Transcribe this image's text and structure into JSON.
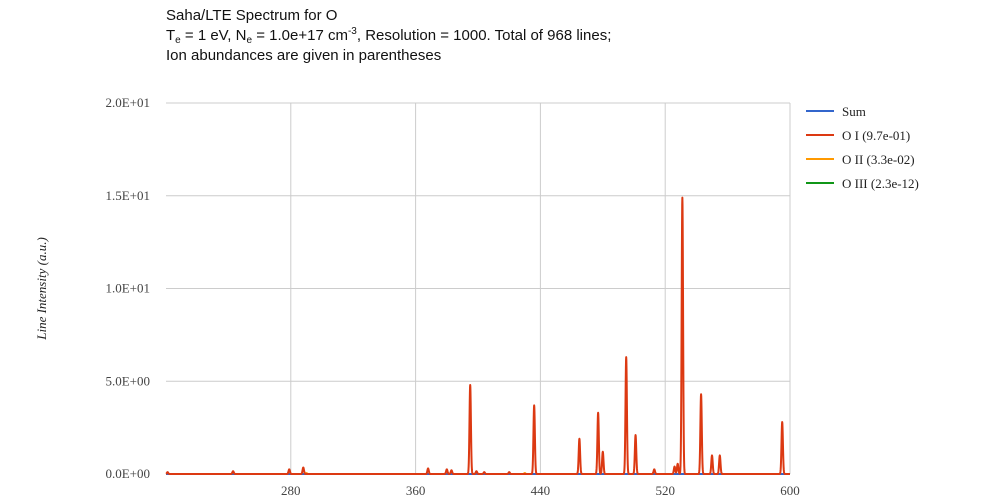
{
  "title": {
    "line1": "Saha/LTE Spectrum for O",
    "te_symbol": "T",
    "te_sub": "e",
    "te_value": " = 1 eV, ",
    "ne_symbol": "N",
    "ne_sub": "e",
    "ne_value": " = 1.0e+17 cm",
    "ne_exp": "-3",
    "rest": ", Resolution = 1000. Total of 968 lines;",
    "line3": "Ion abundances are given in parentheses"
  },
  "chart_data": {
    "type": "line",
    "title": "Saha/LTE Spectrum for O",
    "xlabel": "",
    "ylabel": "Line Intensity (a.u.)",
    "xlim": [
      200,
      600
    ],
    "ylim": [
      0,
      20
    ],
    "x_ticks": [
      280,
      360,
      440,
      520,
      600
    ],
    "x_tick_labels": [
      "280",
      "360",
      "440",
      "520",
      "600"
    ],
    "y_ticks": [
      0,
      5,
      10,
      15,
      20
    ],
    "y_tick_labels": [
      "0.0E+00",
      "5.0E+00",
      "1.0E+01",
      "1.5E+01",
      "2.0E+01"
    ],
    "grid": true,
    "legend_position": "right",
    "colors": {
      "Sum": "#3366cc",
      "O I (9.7e-01)": "#dc3912",
      "O II (3.3e-02)": "#ff9900",
      "O III (2.3e-12)": "#109618"
    },
    "series": [
      {
        "name": "Sum",
        "baseline": 0,
        "peaks": []
      },
      {
        "name": "O I (9.7e-01)",
        "baseline": 0,
        "peaks": [
          {
            "x": 201,
            "y": 0.1
          },
          {
            "x": 243,
            "y": 0.15
          },
          {
            "x": 279,
            "y": 0.25
          },
          {
            "x": 288,
            "y": 0.35
          },
          {
            "x": 368,
            "y": 0.3
          },
          {
            "x": 380,
            "y": 0.25
          },
          {
            "x": 383,
            "y": 0.2
          },
          {
            "x": 395,
            "y": 4.8
          },
          {
            "x": 399,
            "y": 0.15
          },
          {
            "x": 404,
            "y": 0.1
          },
          {
            "x": 420,
            "y": 0.1
          },
          {
            "x": 436,
            "y": 3.7
          },
          {
            "x": 465,
            "y": 1.9
          },
          {
            "x": 477,
            "y": 3.3
          },
          {
            "x": 480,
            "y": 1.2
          },
          {
            "x": 495,
            "y": 6.3
          },
          {
            "x": 501,
            "y": 2.1
          },
          {
            "x": 513,
            "y": 0.25
          },
          {
            "x": 526,
            "y": 0.4
          },
          {
            "x": 528,
            "y": 0.55
          },
          {
            "x": 531,
            "y": 14.9
          },
          {
            "x": 543,
            "y": 4.3
          },
          {
            "x": 550,
            "y": 1.0
          },
          {
            "x": 555,
            "y": 1.0
          },
          {
            "x": 595,
            "y": 2.8
          }
        ]
      },
      {
        "name": "O II (3.3e-02)",
        "baseline": 0,
        "peaks": [
          {
            "x": 290,
            "y": 0.05
          },
          {
            "x": 430,
            "y": 0.05
          }
        ]
      },
      {
        "name": "O III (2.3e-12)",
        "baseline": 0,
        "peaks": []
      }
    ]
  }
}
